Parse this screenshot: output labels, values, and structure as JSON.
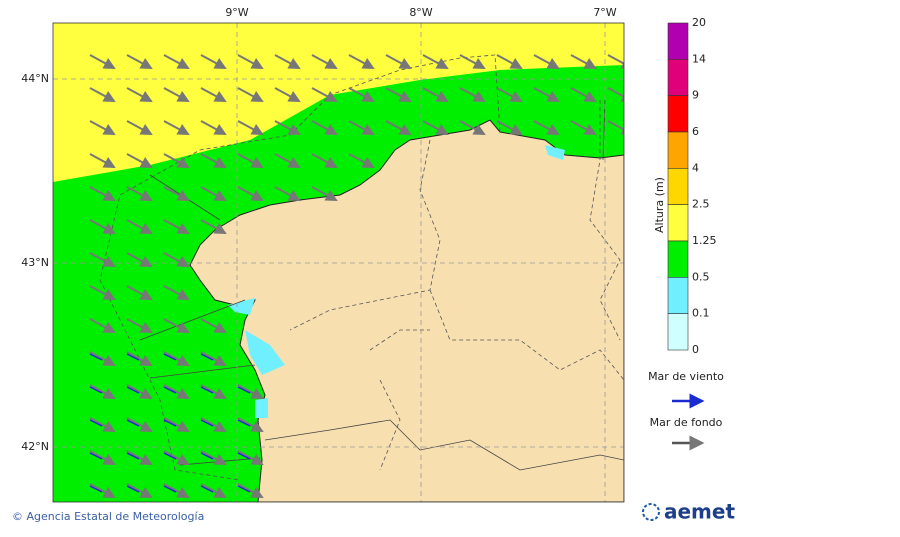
{
  "map": {
    "lon_labels": [
      "9°W",
      "8°W",
      "7°W"
    ],
    "lat_labels": [
      "44°N",
      "43°N",
      "42°N"
    ]
  },
  "legend": {
    "title": "Altura (m)",
    "levels": [
      20,
      14,
      9,
      6,
      4,
      2.5,
      1.25,
      0.5,
      0.1,
      0
    ],
    "colors": [
      "#b000b0",
      "#e0007a",
      "#ff0000",
      "#ffa500",
      "#ffd700",
      "#ffff40",
      "#00ee00",
      "#70f0ff",
      "#d0ffff"
    ],
    "wind_sea": "Mar de viento",
    "swell": "Mar de fondo"
  },
  "footer": {
    "credit": "© Agencia Estatal de Meteorología",
    "logo": "aemet"
  }
}
